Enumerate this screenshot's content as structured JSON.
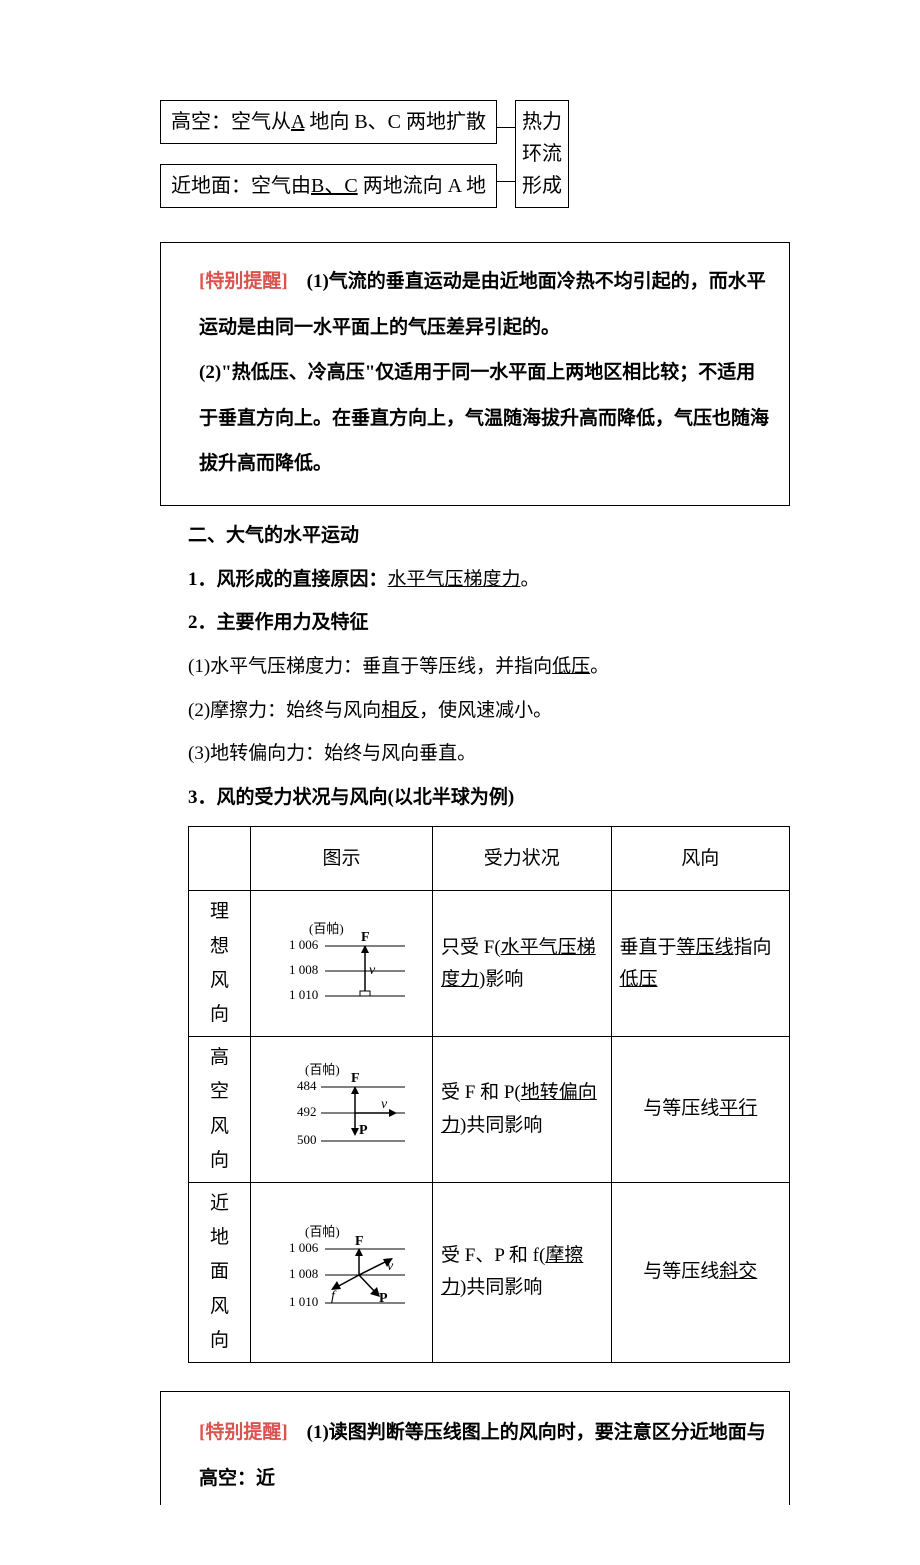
{
  "topDiagram": {
    "box1_pre": "高空：空气从",
    "box1_u": "A",
    "box1_post": " 地向 B、C 两地扩散",
    "box2_pre": "近地面：空气由",
    "box2_u": "B、C",
    "box2_post": " 两地流向 A 地",
    "right1": "热力",
    "right2": "环流",
    "right3": "形成"
  },
  "callout1": {
    "label": "[特别提醒]",
    "line1": "　(1)气流的垂直运动是由近地面冷热不均引起的，而水平运动是由同一水平面上的气压差异引起的。",
    "line2": "(2)\"热低压、冷高压\"仅适用于同一水平面上两地区相比较；不适用于垂直方向上。在垂直方向上，气温随海拔升高而降低，气压也随海拔升高而降低。"
  },
  "section2": {
    "heading": "二、大气的水平运动",
    "p1_pre": "1．风形成的直接原因：",
    "p1_u": "水平气压梯度力",
    "p1_post": "。",
    "p2": "2．主要作用力及特征",
    "p2_1_pre": "(1)水平气压梯度力：垂直于等压线，并指向",
    "p2_1_u": "低压",
    "p2_1_post": "。",
    "p2_2_pre": "(2)摩擦力：始终与风向",
    "p2_2_u": "相反",
    "p2_2_post": "，使风速减小。",
    "p2_3": "(3)地转偏向力：始终与风向垂直。",
    "p3": "3．风的受力状况与风向(以北半球为例)"
  },
  "table": {
    "headers": [
      "",
      "图示",
      "受力状况",
      "风向"
    ],
    "rows": [
      {
        "label": "理想风向",
        "unit": "(百帕)",
        "ticks": [
          "1 006",
          "1 008",
          "1 010"
        ],
        "forces": [
          "F"
        ],
        "arrow_v": true,
        "force_pre": "只受 F(",
        "force_u": "水平气压梯度力",
        "force_post": ")影响",
        "wind_pre": "垂直于",
        "wind_u1": "等压线",
        "wind_mid": "指向",
        "wind_u2": "低压"
      },
      {
        "label": "高空风向",
        "unit": "(百帕)",
        "ticks": [
          "484",
          "492",
          "500"
        ],
        "forces": [
          "F",
          "P"
        ],
        "arrow_h": true,
        "force_pre": "受 F 和 P(",
        "force_u": "地转偏向力",
        "force_post": ")共同影响",
        "wind_pre": "与等压线",
        "wind_u1": "平行"
      },
      {
        "label": "近地面风向",
        "unit": "(百帕)",
        "ticks": [
          "1 006",
          "1 008",
          "1 010"
        ],
        "forces": [
          "F",
          "P",
          "f"
        ],
        "arrow_diag": true,
        "force_pre": "受 F、P 和 f(",
        "force_u": "摩擦力",
        "force_post": ")共同影响",
        "wind_pre": "与等压线",
        "wind_u1": "斜交"
      }
    ]
  },
  "callout2": {
    "label": "[特别提醒]",
    "text": "　(1)读图判断等压线图上的风向时，要注意区分近地面与高空：近"
  },
  "style": {
    "accent": "#d9534f",
    "text": "#000000"
  }
}
